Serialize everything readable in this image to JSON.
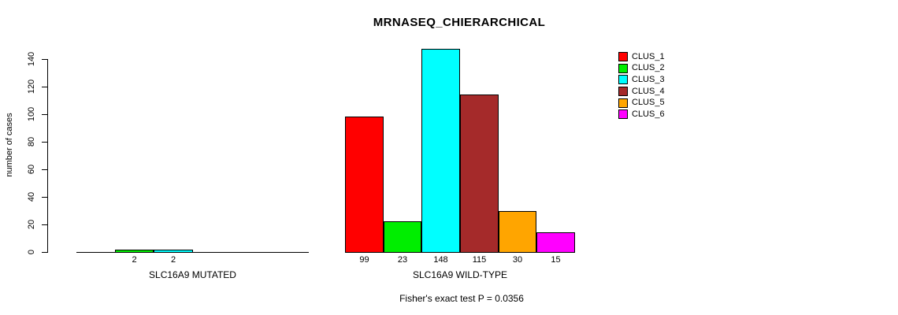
{
  "chart_data": {
    "type": "bar",
    "title": "MRNASEQ_CHIERARCHICAL",
    "ylabel": "number of cases",
    "ylim": [
      0,
      148
    ],
    "yticks": [
      0,
      20,
      40,
      60,
      80,
      100,
      120,
      140
    ],
    "grid": false,
    "legend_position": "right",
    "clusters": [
      {
        "name": "CLUS_1",
        "color": "#FF0000"
      },
      {
        "name": "CLUS_2",
        "color": "#00EE00"
      },
      {
        "name": "CLUS_3",
        "color": "#00FFFF"
      },
      {
        "name": "CLUS_4",
        "color": "#A52A2A"
      },
      {
        "name": "CLUS_5",
        "color": "#FFA500"
      },
      {
        "name": "CLUS_6",
        "color": "#FF00FF"
      }
    ],
    "groups": [
      {
        "label": "SLC16A9 MUTATED",
        "values": [
          0,
          2,
          2,
          0,
          0,
          0
        ],
        "bar_labels": [
          "",
          "2",
          "2",
          "",
          "",
          ""
        ]
      },
      {
        "label": "SLC16A9 WILD-TYPE",
        "values": [
          99,
          23,
          148,
          115,
          30,
          15
        ],
        "bar_labels": [
          "99",
          "23",
          "148",
          "115",
          "30",
          "15"
        ]
      }
    ],
    "footnote": "Fisher's exact test P = 0.0356"
  }
}
